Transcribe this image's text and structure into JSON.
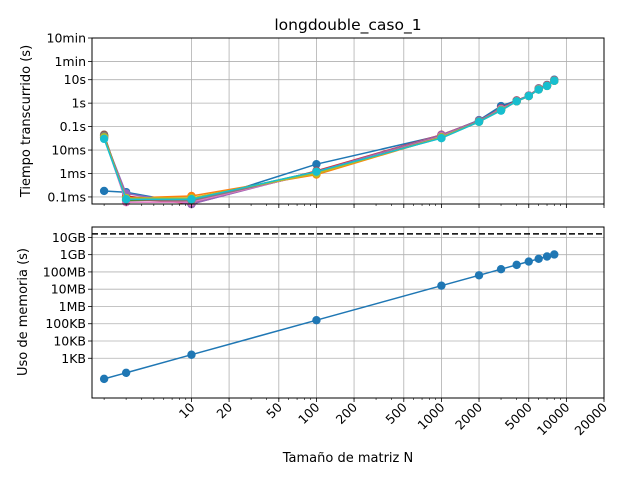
{
  "chart_data": [
    {
      "type": "line",
      "title": "longdouble_caso_1",
      "ylabel": "Tiempo transcurrido (s)",
      "xlabel": "",
      "xscale": "log",
      "yscale": "log",
      "xlim": [
        1.6,
        20000
      ],
      "ylim": [
        5e-05,
        600
      ],
      "grid": true,
      "xticks": [
        10,
        20,
        50,
        100,
        200,
        500,
        1000,
        2000,
        5000,
        10000,
        20000
      ],
      "xticklabels_shown": false,
      "yticks": [
        0.0001,
        0.001,
        0.01,
        0.1,
        1,
        10,
        60,
        600
      ],
      "yticklabels": [
        "0.1ms",
        "1ms",
        "10ms",
        "0.1s",
        "1s",
        "10s",
        "1min",
        "10min"
      ],
      "x": [
        2,
        3,
        10,
        100,
        1000,
        2000,
        3000,
        4000,
        5000,
        6000,
        7000,
        8000
      ],
      "series": [
        {
          "color": "#1f77b4",
          "values": [
            0.00018,
            0.00016,
            5e-05,
            0.0025,
            0.042,
            0.19,
            0.75,
            1.3,
            2.1,
            4.3,
            6.0,
            10.0
          ]
        },
        {
          "color": "#ff7f0e",
          "values": [
            0.04,
            9e-05,
            0.00011,
            0.0009,
            0.035,
            0.17,
            0.55,
            1.25,
            2.0,
            4.0,
            5.5,
            9.0
          ]
        },
        {
          "color": "#2ca02c",
          "values": [
            0.04,
            7e-05,
            8e-05,
            0.0012,
            0.033,
            0.16,
            0.5,
            1.2,
            2.0,
            3.8,
            5.5,
            9.0
          ]
        },
        {
          "color": "#d62728",
          "values": [
            0.035,
            0.00011,
            5e-05,
            0.0013,
            0.045,
            0.18,
            0.6,
            1.3,
            2.1,
            4.2,
            5.8,
            9.5
          ]
        },
        {
          "color": "#9467bd",
          "values": [
            0.035,
            0.00014,
            5e-05,
            0.0012,
            0.044,
            0.18,
            0.58,
            1.25,
            2.1,
            4.1,
            5.7,
            9.4
          ]
        },
        {
          "color": "#8c564b",
          "values": [
            0.045,
            8e-05,
            6e-05,
            0.0011,
            0.04,
            0.17,
            0.55,
            1.2,
            2.0,
            4.0,
            5.5,
            9.2
          ]
        },
        {
          "color": "#e377c2",
          "values": [
            0.035,
            6e-05,
            6e-05,
            0.0011,
            0.039,
            0.17,
            0.55,
            1.2,
            2.0,
            4.0,
            5.5,
            9.2
          ]
        },
        {
          "color": "#7f7f7f",
          "values": [
            0.04,
            8e-05,
            7e-05,
            0.0011,
            0.036,
            0.17,
            0.52,
            1.2,
            2.0,
            3.9,
            5.5,
            9.1
          ]
        },
        {
          "color": "#bcbd22",
          "values": [
            0.035,
            9e-05,
            9e-05,
            0.001,
            0.035,
            0.16,
            0.5,
            1.2,
            2.0,
            3.9,
            5.4,
            9.0
          ]
        },
        {
          "color": "#17becf",
          "values": [
            0.03,
            8e-05,
            8e-05,
            0.0012,
            0.032,
            0.16,
            0.48,
            1.2,
            2.0,
            3.8,
            5.4,
            9.0
          ]
        }
      ]
    },
    {
      "type": "line",
      "title": "",
      "xlabel": "Tamaño de matriz N",
      "ylabel": "Uso de memoria (s)",
      "xscale": "log",
      "yscale": "log",
      "xlim": [
        1.6,
        20000
      ],
      "ylim": [
        5,
        40000000000
      ],
      "grid": true,
      "xticks": [
        10,
        20,
        50,
        100,
        200,
        500,
        1000,
        2000,
        5000,
        10000,
        20000
      ],
      "xticklabels": [
        "10",
        "20",
        "50",
        "100",
        "200",
        "500",
        "1000",
        "2000",
        "5000",
        "10000",
        "20000"
      ],
      "yticks": [
        1000,
        10000,
        100000,
        1000000,
        10000000,
        100000000,
        1000000000,
        10000000000
      ],
      "yticklabels": [
        "1KB",
        "10KB",
        "100KB",
        "1MB",
        "10MB",
        "100MB",
        "1GB",
        "10GB"
      ],
      "hline": {
        "y": 16000000000,
        "style": "dashed",
        "color": "#000000"
      },
      "x": [
        2,
        3,
        10,
        100,
        1000,
        2000,
        3000,
        4000,
        5000,
        6000,
        7000,
        8000
      ],
      "series": [
        {
          "color": "#1f77b4",
          "values": [
            64,
            144,
            1600,
            160000,
            16000000,
            64000000,
            144000000,
            256000000,
            400000000,
            576000000,
            784000000,
            1024000000
          ]
        }
      ]
    }
  ]
}
